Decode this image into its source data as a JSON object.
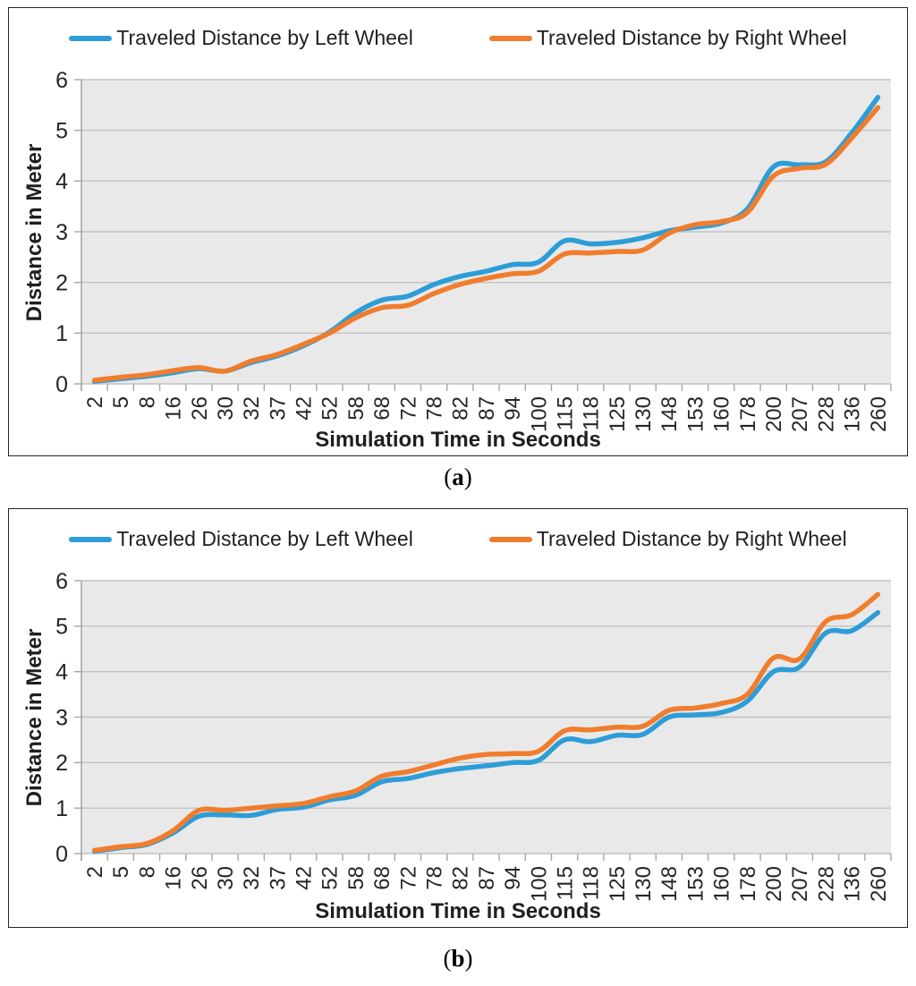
{
  "figures": [
    {
      "caption": {
        "open": "(",
        "letter": "a",
        "close": ")"
      }
    },
    {
      "caption": {
        "open": "(",
        "letter": "b",
        "close": ")"
      }
    }
  ],
  "colors": {
    "left_wheel": "#2D9DD7",
    "right_wheel": "#F07D2D",
    "plot_background": "#E9E9E9",
    "gridline": "#C2C2C2",
    "axis": "#A6A6A6",
    "tick_text": "#262626"
  },
  "chart_data": [
    {
      "type": "line",
      "title": "",
      "xlabel": "Simulation Time in Seconds",
      "ylabel": "Distance in Meter",
      "ylim": [
        0,
        6
      ],
      "yticks": [
        0,
        1,
        2,
        3,
        4,
        5,
        6
      ],
      "grid": true,
      "legend_position": "top",
      "plot_bg": "#E9E9E9",
      "gridline_color": "#C2C2C2",
      "axis_color": "#A6A6A6",
      "categories": [
        "2",
        "5",
        "8",
        "16",
        "26",
        "30",
        "32",
        "37",
        "42",
        "52",
        "58",
        "68",
        "72",
        "78",
        "82",
        "87",
        "94",
        "100",
        "115",
        "118",
        "125",
        "130",
        "148",
        "153",
        "160",
        "178",
        "200",
        "207",
        "228",
        "136",
        "260"
      ],
      "series": [
        {
          "name": "Traveled Distance by Left Wheel",
          "color": "#2D9DD7",
          "values": [
            0.05,
            0.1,
            0.15,
            0.22,
            0.3,
            0.25,
            0.42,
            0.55,
            0.75,
            1.02,
            1.4,
            1.65,
            1.73,
            1.96,
            2.12,
            2.22,
            2.35,
            2.4,
            2.82,
            2.76,
            2.79,
            2.88,
            3.02,
            3.09,
            3.17,
            3.45,
            4.28,
            4.32,
            4.38,
            4.95,
            5.65
          ]
        },
        {
          "name": "Traveled Distance by Right Wheel",
          "color": "#F07D2D",
          "values": [
            0.07,
            0.13,
            0.18,
            0.26,
            0.32,
            0.25,
            0.45,
            0.58,
            0.78,
            1.0,
            1.3,
            1.5,
            1.55,
            1.78,
            1.96,
            2.08,
            2.17,
            2.22,
            2.56,
            2.58,
            2.61,
            2.64,
            2.97,
            3.14,
            3.2,
            3.38,
            4.1,
            4.25,
            4.33,
            4.85,
            5.45
          ]
        }
      ]
    },
    {
      "type": "line",
      "title": "",
      "xlabel": "Simulation Time in Seconds",
      "ylabel": "Distance in Meter",
      "ylim": [
        0,
        6
      ],
      "yticks": [
        0,
        1,
        2,
        3,
        4,
        5,
        6
      ],
      "grid": true,
      "legend_position": "top",
      "plot_bg": "#E9E9E9",
      "gridline_color": "#C2C2C2",
      "axis_color": "#A6A6A6",
      "categories": [
        "2",
        "5",
        "8",
        "16",
        "26",
        "30",
        "32",
        "37",
        "42",
        "52",
        "58",
        "68",
        "72",
        "78",
        "82",
        "87",
        "94",
        "100",
        "115",
        "118",
        "125",
        "130",
        "148",
        "153",
        "160",
        "178",
        "200",
        "207",
        "228",
        "136",
        "260"
      ],
      "series": [
        {
          "name": "Traveled Distance by Left Wheel",
          "color": "#2D9DD7",
          "values": [
            0.05,
            0.13,
            0.2,
            0.45,
            0.82,
            0.85,
            0.84,
            0.97,
            1.02,
            1.18,
            1.28,
            1.58,
            1.65,
            1.78,
            1.87,
            1.93,
            2.0,
            2.05,
            2.5,
            2.46,
            2.6,
            2.62,
            3.0,
            3.05,
            3.1,
            3.35,
            4.0,
            4.1,
            4.85,
            4.9,
            5.3
          ]
        },
        {
          "name": "Traveled Distance by Right Wheel",
          "color": "#F07D2D",
          "values": [
            0.07,
            0.15,
            0.22,
            0.5,
            0.95,
            0.95,
            1.0,
            1.05,
            1.1,
            1.25,
            1.38,
            1.7,
            1.8,
            1.95,
            2.1,
            2.18,
            2.2,
            2.25,
            2.7,
            2.72,
            2.78,
            2.8,
            3.15,
            3.2,
            3.3,
            3.5,
            4.3,
            4.28,
            5.1,
            5.25,
            5.7
          ]
        }
      ]
    }
  ]
}
